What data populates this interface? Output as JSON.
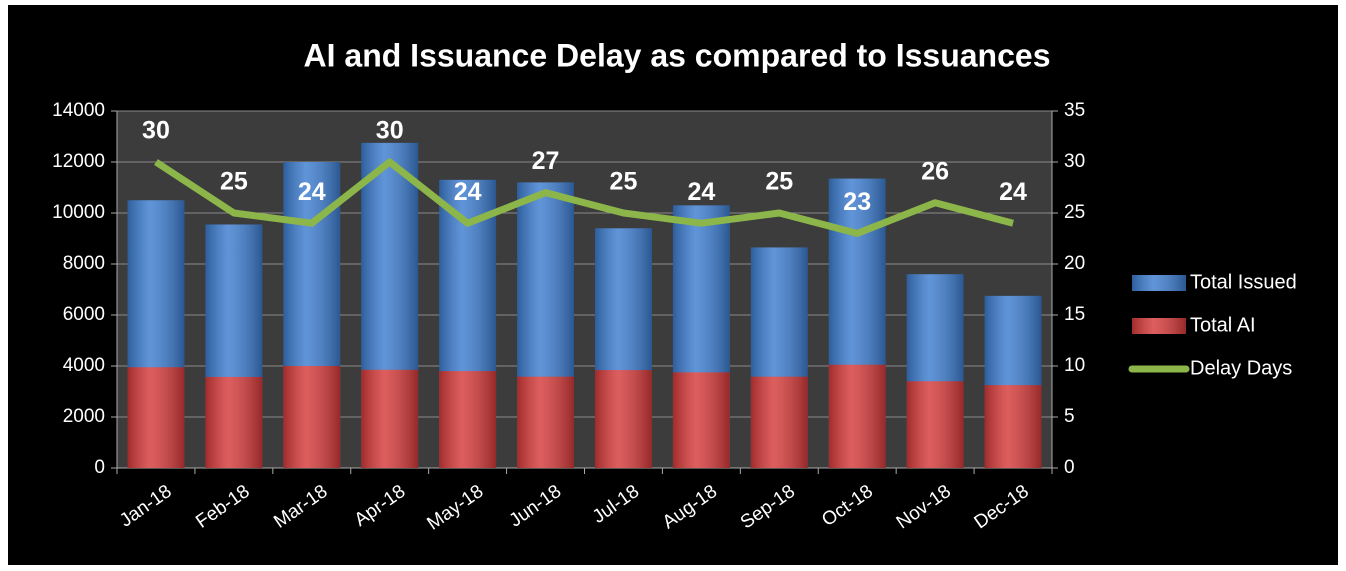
{
  "chart_data": {
    "type": "bar",
    "title": "AI and Issuance Delay as compared to Issuances",
    "categories": [
      "Jan-18",
      "Feb-18",
      "Mar-18",
      "Apr-18",
      "May-18",
      "Jun-18",
      "Jul-18",
      "Aug-18",
      "Sep-18",
      "Oct-18",
      "Nov-18",
      "Dec-18"
    ],
    "series": [
      {
        "name": "Total Issued",
        "type": "bar",
        "color": "#3d7dd0",
        "values": [
          10500,
          9550,
          12000,
          12750,
          11300,
          11200,
          9400,
          10300,
          8650,
          11350,
          7600,
          6750
        ]
      },
      {
        "name": "Total AI",
        "type": "bar",
        "color": "#d63a3a",
        "values": [
          3950,
          3570,
          4000,
          3850,
          3800,
          3580,
          3840,
          3750,
          3580,
          4050,
          3400,
          3250
        ]
      },
      {
        "name": "Delay Days",
        "type": "line",
        "axis": "y2",
        "color": "#8db64a",
        "values": [
          30,
          25,
          24,
          30,
          24,
          27,
          25,
          24,
          25,
          23,
          26,
          24
        ]
      }
    ],
    "ylim": [
      0,
      14000
    ],
    "yticks": [
      0,
      2000,
      4000,
      6000,
      8000,
      10000,
      12000,
      14000
    ],
    "y2lim": [
      0,
      35
    ],
    "y2ticks": [
      0,
      5,
      10,
      15,
      20,
      25,
      30,
      35
    ],
    "grid": true,
    "legend": "right"
  }
}
